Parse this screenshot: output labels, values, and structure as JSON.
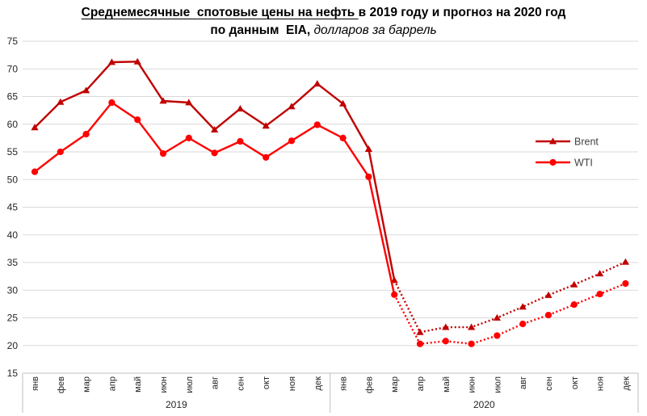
{
  "title": {
    "line1_underlined": "Среднемесячные  спотовые цены на нефть ",
    "line1_rest": "в 2019 году и прогноз на 2020 год",
    "line2_bold": "по данным  EIA,",
    "line2_italic": " долларов за баррель"
  },
  "chart_data": {
    "type": "line",
    "title": "Среднемесячные спотовые цены на нефть в 2019 году и прогноз на 2020 год по данным EIA, долларов за баррель",
    "ylim": [
      15,
      75
    ],
    "ytick_step": 5,
    "grid": true,
    "month_labels": [
      "янв",
      "фев",
      "мар",
      "апр",
      "май",
      "июн",
      "июл",
      "авг",
      "сен",
      "окт",
      "ноя",
      "дек"
    ],
    "years": [
      "2019",
      "2020"
    ],
    "forecast_start_index": 14,
    "legend": {
      "position": "right-inside",
      "entries": [
        "Brent",
        "WTI"
      ]
    },
    "colors": {
      "brent": "#C00000",
      "wti": "#FF0000",
      "gridline": "#D9D9D9",
      "axis_band": "#BFBFBF",
      "tick_text": "#262626",
      "legend_text": "#404040"
    },
    "series": [
      {
        "name": "Brent",
        "color": "#C00000",
        "marker": "triangle",
        "values_2019": [
          59.4,
          64.0,
          66.1,
          71.2,
          71.3,
          64.2,
          63.9,
          59.0,
          62.8,
          59.7,
          63.2,
          67.3
        ],
        "values_2020": [
          63.7,
          55.5,
          31.8,
          22.4,
          23.3,
          23.3,
          25.0,
          27.0,
          29.1,
          31.0,
          33.0,
          35.1
        ]
      },
      {
        "name": "WTI",
        "color": "#FF0000",
        "marker": "circle",
        "values_2019": [
          51.4,
          55.0,
          58.2,
          63.9,
          60.8,
          54.7,
          57.5,
          54.8,
          56.9,
          54.0,
          57.0,
          59.9
        ],
        "values_2020": [
          57.5,
          50.5,
          29.2,
          20.3,
          20.8,
          20.3,
          21.8,
          23.9,
          25.5,
          27.4,
          29.3,
          31.2
        ]
      }
    ]
  }
}
